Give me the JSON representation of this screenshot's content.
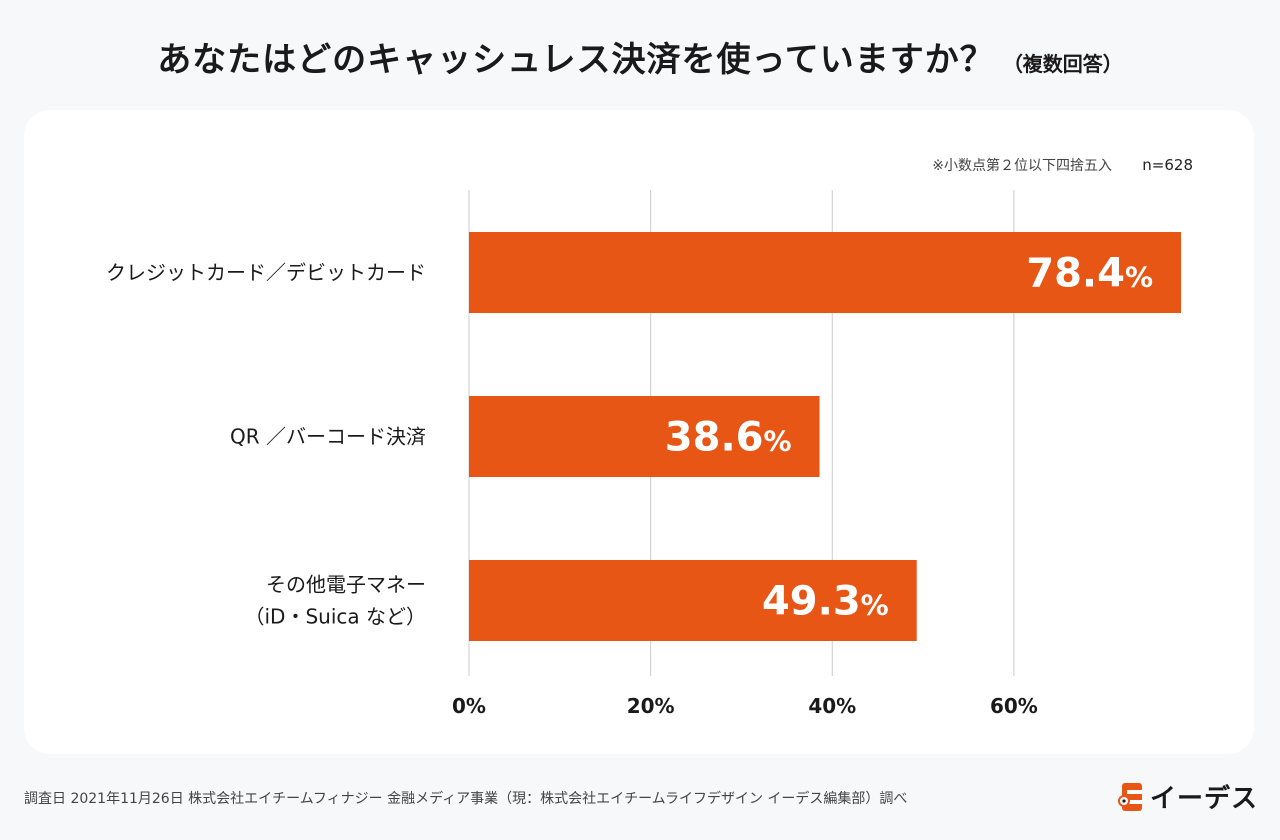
{
  "header": {
    "title": "あなたはどのキャッシュレス決済を使っていますか？",
    "subtitle": "（複数回答）"
  },
  "chart_data": {
    "type": "bar",
    "orientation": "horizontal",
    "title": "あなたはどのキャッシュレス決済を使っていますか？",
    "note": "※小数点第２位以下四捨五入",
    "sample_size": "n=628",
    "categories": [
      [
        "クレジットカード／デビットカード"
      ],
      [
        "QR ／バーコード決済"
      ],
      [
        "その他電子マネー",
        "（iD・Suica など）"
      ]
    ],
    "values": [
      78.4,
      38.6,
      49.3
    ],
    "value_labels": [
      "78.4",
      "38.6",
      "49.3"
    ],
    "value_unit": "%",
    "xlim": [
      0,
      78.4
    ],
    "xticks": [
      0,
      20,
      40,
      60
    ],
    "xtick_labels": [
      "0%",
      "20%",
      "40%",
      "60%"
    ],
    "grid": true,
    "bar_color": "#e85616",
    "grid_color": "#cccccc"
  },
  "footer": {
    "source": "調査日 2021年11月26日  株式会社エイチームフィナジー 金融メディア事業（現：株式会社エイチームライフデザイン イーデス編集部）調べ"
  },
  "logo": {
    "text": "イーデス",
    "color": "#e85616"
  }
}
